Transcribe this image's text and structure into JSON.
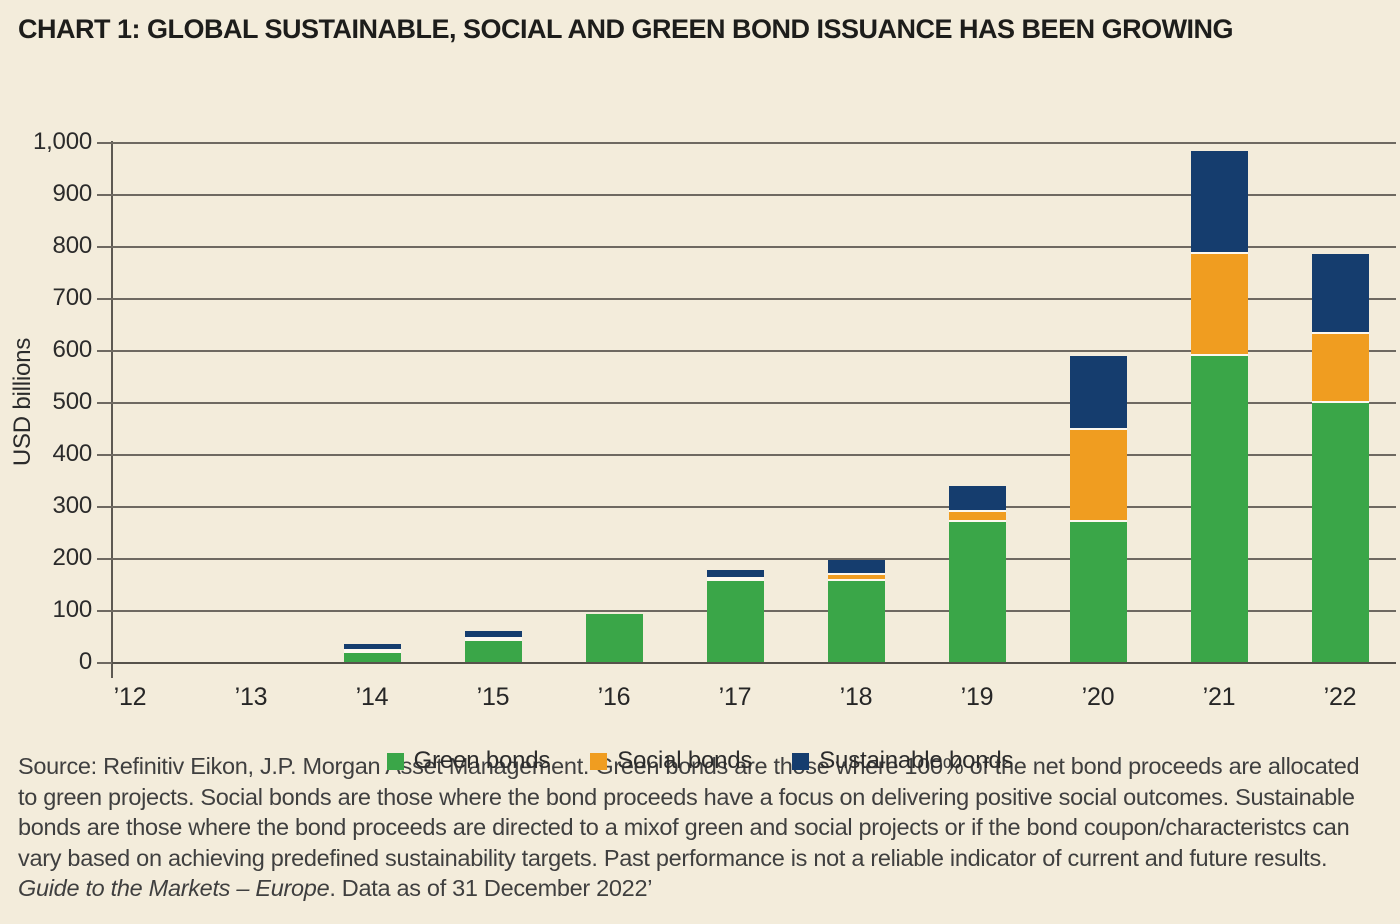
{
  "title": "CHART 1: GLOBAL SUSTAINABLE, SOCIAL AND GREEN BOND ISSUANCE HAS BEEN GROWING",
  "chart_data": {
    "type": "bar",
    "stacked": true,
    "title": "CHART 1: GLOBAL SUSTAINABLE, SOCIAL AND GREEN BOND ISSUANCE HAS BEEN GROWING",
    "categories": [
      "’12",
      "’13",
      "’14",
      "’15",
      "’16",
      "’17",
      "’18",
      "’19",
      "’20",
      "’21",
      "’22"
    ],
    "series": [
      {
        "name": "Green bonds",
        "color": "#3aa648",
        "values": [
          0,
          0,
          20,
          42,
          93,
          155,
          155,
          270,
          270,
          588,
          498
        ]
      },
      {
        "name": "Social bonds",
        "color": "#f09d20",
        "values": [
          0,
          0,
          2,
          3,
          0,
          4,
          12,
          18,
          177,
          196,
          133
        ]
      },
      {
        "name": "Sustainable bonds",
        "color": "#153d6e",
        "values": [
          0,
          0,
          12,
          15,
          0,
          18,
          30,
          50,
          142,
          199,
          154
        ]
      }
    ],
    "xlabel": "",
    "ylabel": "USD billions",
    "ylim": [
      0,
      1000
    ],
    "ytick_step": 100,
    "yticks": [
      "0",
      "100",
      "200",
      "300",
      "400",
      "500",
      "600",
      "700",
      "800",
      "900",
      "1,000"
    ],
    "grid": true,
    "legend_position": "bottom",
    "background_color": "#f3ecdb",
    "segment_separator_color": "#fcf8ef"
  },
  "footer": {
    "pre_italic": "Source: Refinitiv Eikon, J.P. Morgan Asset Management. Green bonds are those where 100% of the net bond proceeds are allocated to green projects. Social bonds are those where the bond proceeds have a focus on delivering positive social outcomes. Sustainable bonds are those where the bond proceeds are directed to a mixof green and social projects or if the bond coupon/characteristcs can vary based on achieving predefined sustainability targets. Past performance is not a reliable indicator of current and future results. ",
    "italic": "Guide to the Markets – Europe",
    "post_italic": ". Data as of 31 December 2022’"
  }
}
